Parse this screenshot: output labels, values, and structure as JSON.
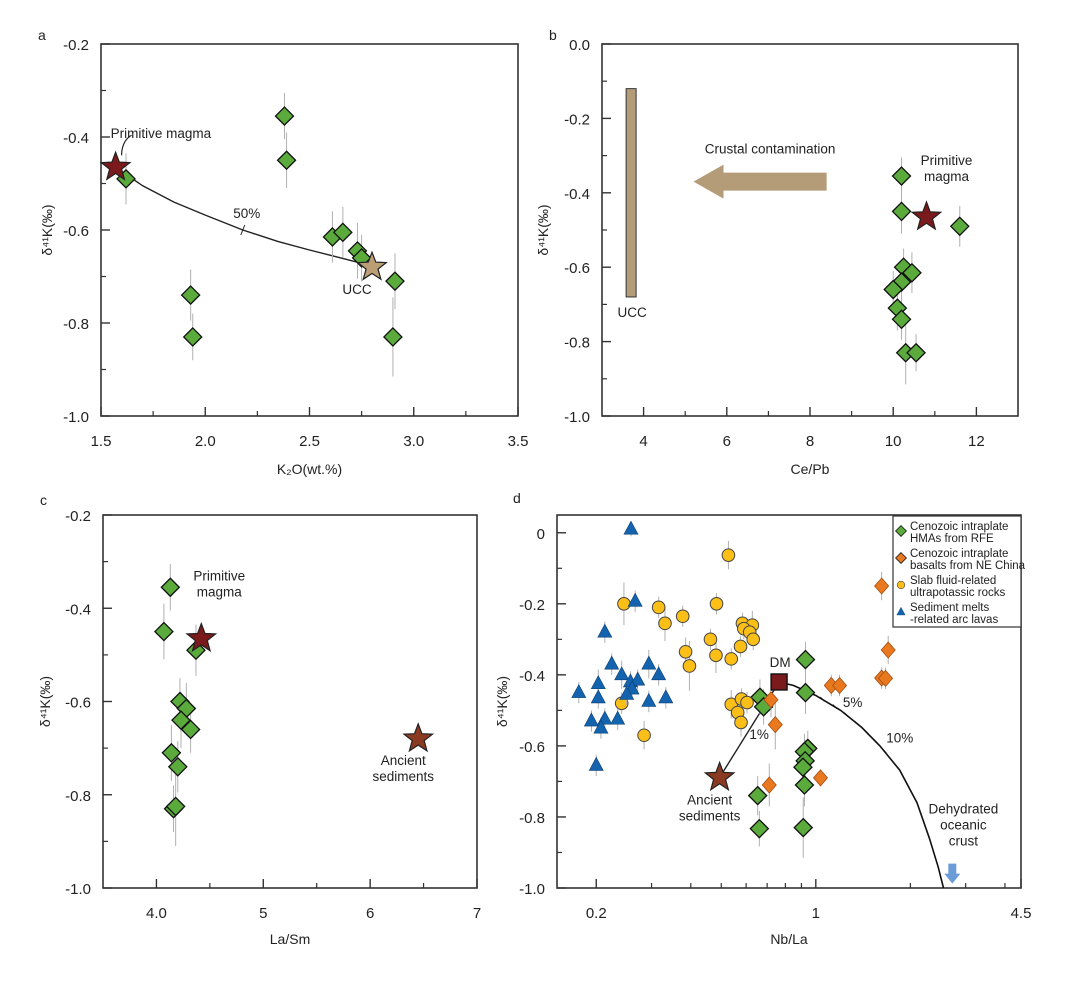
{
  "colors": {
    "hma_green": "#5aab3c",
    "basalt_orange": "#e8791f",
    "slab_yellow": "#fbbf17",
    "sediment_blue": "#1463ae",
    "primitive_magma_star": "#7a1a1c",
    "ucc_star": "#bb9d76",
    "ancient_sediments_star": "#8a3a20",
    "dm_square": "#7a1a1c",
    "ucc_bar": "#b59c78",
    "contamination_arrow": "#b59c78",
    "dehydrated_arrow": "#6c9cd8",
    "error_bar": "#b0b0b0"
  },
  "chart_data": [
    {
      "panel": "a",
      "type": "scatter",
      "xlabel": "K₂O(wt.%)",
      "ylabel": "δ⁴¹K(‰)",
      "xlim": [
        1.5,
        3.5
      ],
      "ylim": [
        -1.0,
        -0.2
      ],
      "xscale": "linear",
      "xticks": [
        1.5,
        2.0,
        2.5,
        3.0,
        3.5
      ],
      "xtick_labels": [
        "1.5",
        "2.0",
        "2.5",
        "3.0",
        "3.5"
      ],
      "yticks": [
        -1.0,
        -0.8,
        -0.6,
        -0.4,
        -0.2
      ],
      "ytick_labels": [
        "-1.0",
        "-0.8",
        "-0.6",
        "-0.4",
        "-0.2"
      ],
      "grid": false,
      "series": [
        {
          "marker": "diamond",
          "color_key": "hma_green",
          "points": [
            [
              1.62,
              -0.49,
              0.055
            ],
            [
              2.38,
              -0.355,
              0.05
            ],
            [
              2.39,
              -0.45,
              0.06
            ],
            [
              2.61,
              -0.615,
              0.055
            ],
            [
              2.66,
              -0.605,
              0.055
            ],
            [
              2.73,
              -0.645,
              0.06
            ],
            [
              2.75,
              -0.66,
              0.05
            ],
            [
              2.91,
              -0.71,
              0.06
            ],
            [
              1.93,
              -0.74,
              0.055
            ],
            [
              1.94,
              -0.83,
              0.05
            ],
            [
              2.9,
              -0.83,
              0.085
            ]
          ]
        }
      ],
      "endmembers": [
        {
          "label": "Primitive magma",
          "marker": "star",
          "color_key": "primitive_magma_star",
          "x": 1.57,
          "y": -0.465
        },
        {
          "label": "UCC",
          "marker": "star",
          "color_key": "ucc_star",
          "x": 2.8,
          "y": -0.68
        }
      ],
      "mixing_curve": {
        "label": "50%",
        "points": [
          [
            1.57,
            -0.465
          ],
          [
            1.7,
            -0.505
          ],
          [
            1.85,
            -0.54
          ],
          [
            2.0,
            -0.568
          ],
          [
            2.18,
            -0.6
          ],
          [
            2.35,
            -0.625
          ],
          [
            2.5,
            -0.643
          ],
          [
            2.65,
            -0.66
          ],
          [
            2.78,
            -0.675
          ]
        ]
      }
    },
    {
      "panel": "b",
      "type": "scatter",
      "xlabel": "Ce/Pb",
      "ylabel": "δ⁴¹K(‰)",
      "xlim": [
        3,
        13
      ],
      "ylim": [
        -1.0,
        0.0
      ],
      "xscale": "linear",
      "xticks": [
        4,
        6,
        8,
        10,
        12
      ],
      "xtick_labels": [
        "4",
        "6",
        "8",
        "10",
        "12"
      ],
      "yticks": [
        -1.0,
        -0.8,
        -0.6,
        -0.4,
        -0.2,
        0.0
      ],
      "ytick_labels": [
        "-1.0",
        "-0.8",
        "-0.6",
        "-0.4",
        "-0.2",
        "0.0"
      ],
      "grid": false,
      "series": [
        {
          "marker": "diamond",
          "color_key": "hma_green",
          "points": [
            [
              10.2,
              -0.355,
              0.05
            ],
            [
              10.2,
              -0.45,
              0.06
            ],
            [
              11.6,
              -0.49,
              0.055
            ],
            [
              10.25,
              -0.6,
              0.05
            ],
            [
              10.45,
              -0.615,
              0.055
            ],
            [
              10.2,
              -0.64,
              0.06
            ],
            [
              10.0,
              -0.66,
              0.05
            ],
            [
              10.1,
              -0.71,
              0.06
            ],
            [
              10.2,
              -0.74,
              0.055
            ],
            [
              10.3,
              -0.83,
              0.085
            ],
            [
              10.55,
              -0.83,
              0.05
            ]
          ]
        }
      ],
      "endmembers": [
        {
          "label": "Primitive magma",
          "marker": "star",
          "color_key": "primitive_magma_star",
          "x": 10.8,
          "y": -0.465
        }
      ],
      "ucc_range": {
        "label": "UCC",
        "x": 3.7,
        "y_range": [
          -0.12,
          -0.68
        ]
      },
      "arrow": {
        "label": "Crustal contamination",
        "x_from": 8.4,
        "x_to": 5.2,
        "y": -0.37
      }
    },
    {
      "panel": "c",
      "type": "scatter",
      "xlabel": "La/Sm",
      "ylabel": "δ⁴¹K(‰)",
      "xlim": [
        3.5,
        7
      ],
      "ylim": [
        -1.0,
        -0.2
      ],
      "xscale": "linear",
      "xticks": [
        4,
        5,
        6,
        7
      ],
      "xtick_labels": [
        "4.0",
        "5",
        "6",
        "7"
      ],
      "yticks": [
        -1.0,
        -0.8,
        -0.6,
        -0.4,
        -0.2
      ],
      "ytick_labels": [
        "-1.0",
        "-0.8",
        "-0.6",
        "-0.4",
        "-0.2"
      ],
      "grid": false,
      "series": [
        {
          "marker": "diamond",
          "color_key": "hma_green",
          "points": [
            [
              4.13,
              -0.355,
              0.05
            ],
            [
              4.07,
              -0.45,
              0.06
            ],
            [
              4.37,
              -0.49,
              0.055
            ],
            [
              4.22,
              -0.6,
              0.05
            ],
            [
              4.28,
              -0.615,
              0.055
            ],
            [
              4.23,
              -0.64,
              0.06
            ],
            [
              4.32,
              -0.66,
              0.05
            ],
            [
              4.14,
              -0.71,
              0.06
            ],
            [
              4.2,
              -0.74,
              0.055
            ],
            [
              4.16,
              -0.83,
              0.05
            ],
            [
              4.18,
              -0.825,
              0.085
            ]
          ]
        }
      ],
      "endmembers": [
        {
          "label": "Primitive magma",
          "marker": "star",
          "color_key": "primitive_magma_star",
          "x": 4.42,
          "y": -0.465
        },
        {
          "label": "Ancient sediments",
          "marker": "star",
          "color_key": "ancient_sediments_star",
          "x": 6.45,
          "y": -0.68
        }
      ]
    },
    {
      "panel": "d",
      "type": "scatter",
      "xlabel": "Nb/La",
      "ylabel": "δ⁴¹K(‰)",
      "xlim": [
        0.15,
        4.5
      ],
      "ylim": [
        -1.0,
        0.05
      ],
      "xscale": "log",
      "xticks": [
        0.2,
        1,
        4.5
      ],
      "xtick_labels": [
        "0.2",
        "1",
        "4.5"
      ],
      "yticks": [
        -1.0,
        -0.8,
        -0.6,
        -0.4,
        -0.2,
        0
      ],
      "ytick_labels": [
        "-1.0",
        "-0.8",
        "-0.6",
        "-0.4",
        "-0.2",
        "0"
      ],
      "grid": false,
      "legend_position": "top-right",
      "series": [
        {
          "name": "Cenozoic intraplate HMAs from RFE",
          "legend_lines": [
            "Cenozoic intraplate",
            " HMAs from RFE"
          ],
          "marker": "diamond",
          "color_key": "hma_green",
          "points": [
            [
              0.927,
              -0.357,
              0.05
            ],
            [
              0.927,
              -0.45,
              0.06
            ],
            [
              0.664,
              -0.463,
              0.05
            ],
            [
              0.682,
              -0.49,
              0.05
            ],
            [
              0.943,
              -0.607,
              0.05
            ],
            [
              0.92,
              -0.616,
              0.05
            ],
            [
              0.925,
              -0.642,
              0.06
            ],
            [
              0.91,
              -0.66,
              0.05
            ],
            [
              0.92,
              -0.71,
              0.06
            ],
            [
              0.653,
              -0.74,
              0.055
            ],
            [
              0.661,
              -0.833,
              0.05
            ],
            [
              0.912,
              -0.83,
              0.085
            ]
          ]
        },
        {
          "name": "Cenozoic intraplate basalts from NE China",
          "legend_lines": [
            "Cenozoic intraplate",
            "basalts from NE China"
          ],
          "marker": "diamond-small",
          "color_key": "basalt_orange",
          "points": [
            [
              1.62,
              -0.15,
              0.04
            ],
            [
              1.7,
              -0.33,
              0.04
            ],
            [
              1.62,
              -0.409,
              0.03
            ],
            [
              1.667,
              -0.41,
              0.03
            ],
            [
              1.12,
              -0.43,
              0.03
            ],
            [
              1.19,
              -0.43,
              0.03
            ],
            [
              0.72,
              -0.47,
              0.05
            ],
            [
              0.743,
              -0.54,
              0.07
            ],
            [
              0.711,
              -0.71,
              0.06
            ],
            [
              1.035,
              -0.69,
              0.02
            ]
          ]
        },
        {
          "name": "Slab fluid-related ultrapotassic rocks",
          "legend_lines": [
            "Slab fluid-related",
            "ultrapotassic  rocks"
          ],
          "marker": "circle",
          "color_key": "slab_yellow",
          "points": [
            [
              0.527,
              -0.063,
              0.04
            ],
            [
              0.245,
              -0.2,
              0.06
            ],
            [
              0.483,
              -0.2,
              0.03
            ],
            [
              0.316,
              -0.21,
              0.03
            ],
            [
              0.331,
              -0.255,
              0.05
            ],
            [
              0.377,
              -0.235,
              0.03
            ],
            [
              0.462,
              -0.3,
              0.03
            ],
            [
              0.385,
              -0.335,
              0.04
            ],
            [
              0.481,
              -0.345,
              0.05
            ],
            [
              0.396,
              -0.375,
              0.07
            ],
            [
              0.538,
              -0.355,
              0.03
            ],
            [
              0.576,
              -0.32,
              0.03
            ],
            [
              0.584,
              -0.255,
              0.03
            ],
            [
              0.628,
              -0.26,
              0.04
            ],
            [
              0.59,
              -0.27,
              0.03
            ],
            [
              0.616,
              -0.28,
              0.03
            ],
            [
              0.632,
              -0.3,
              0.03
            ],
            [
              0.241,
              -0.48,
              0.03
            ],
            [
              0.284,
              -0.57,
              0.04
            ],
            [
              0.538,
              -0.483,
              0.04
            ],
            [
              0.58,
              -0.468,
              0.03
            ],
            [
              0.604,
              -0.478,
              0.03
            ],
            [
              0.564,
              -0.506,
              0.04
            ],
            [
              0.578,
              -0.534,
              0.04
            ]
          ]
        },
        {
          "name": "Sediment melts -related arc lavas",
          "legend_lines": [
            "Sediment melts",
            "-related arc lavas"
          ],
          "marker": "triangle",
          "color_key": "sediment_blue",
          "points": [
            [
              0.258,
              0.01,
              0.02
            ],
            [
              0.266,
              -0.193,
              0.03
            ],
            [
              0.213,
              -0.28,
              0.03
            ],
            [
              0.224,
              -0.37,
              0.03
            ],
            [
              0.241,
              -0.4,
              0.04
            ],
            [
              0.294,
              -0.37,
              0.04
            ],
            [
              0.316,
              -0.4,
              0.03
            ],
            [
              0.203,
              -0.425,
              0.04
            ],
            [
              0.257,
              -0.42,
              0.03
            ],
            [
              0.271,
              -0.415,
              0.03
            ],
            [
              0.26,
              -0.44,
              0.03
            ],
            [
              0.25,
              -0.455,
              0.03
            ],
            [
              0.203,
              -0.465,
              0.03
            ],
            [
              0.176,
              -0.45,
              0.03
            ],
            [
              0.294,
              -0.475,
              0.03
            ],
            [
              0.333,
              -0.465,
              0.03
            ],
            [
              0.213,
              -0.525,
              0.03
            ],
            [
              0.193,
              -0.53,
              0.03
            ],
            [
              0.234,
              -0.525,
              0.03
            ],
            [
              0.207,
              -0.55,
              0.03
            ],
            [
              0.2,
              -0.655,
              0.03
            ]
          ]
        }
      ],
      "endmembers": [
        {
          "label": "DM",
          "marker": "square",
          "color_key": "dm_square",
          "x": 0.764,
          "y": -0.42
        },
        {
          "label": "Ancient sediments",
          "marker": "star",
          "color_key": "ancient_sediments_star",
          "x": 0.494,
          "y": -0.689
        }
      ],
      "mixing_lines": [
        {
          "label": "1%",
          "points": [
            [
              0.764,
              -0.42
            ],
            [
              0.494,
              -0.689
            ]
          ]
        },
        {
          "labels": [
            "5%",
            "10%"
          ],
          "points": [
            [
              0.764,
              -0.42
            ],
            [
              0.85,
              -0.43
            ],
            [
              1.0,
              -0.458
            ],
            [
              1.2,
              -0.5
            ],
            [
              1.4,
              -0.548
            ],
            [
              1.6,
              -0.6
            ],
            [
              1.85,
              -0.668
            ],
            [
              2.1,
              -0.76
            ],
            [
              2.3,
              -0.86
            ],
            [
              2.45,
              -0.94
            ],
            [
              2.55,
              -1.0
            ]
          ]
        }
      ],
      "dehydrated_crust": {
        "label_lines": [
          "Dehydrated",
          "oceanic",
          "crust"
        ]
      }
    }
  ]
}
